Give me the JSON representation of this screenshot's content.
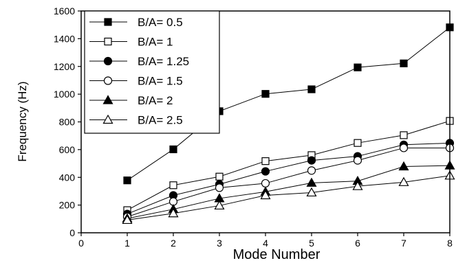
{
  "chart_data": {
    "type": "line",
    "title": "",
    "xlabel": "Mode Number",
    "ylabel": "Frequency (Hz)",
    "xlim": [
      0,
      8
    ],
    "ylim": [
      0,
      1600
    ],
    "x_ticks": [
      0,
      1,
      2,
      3,
      4,
      5,
      6,
      7,
      8
    ],
    "y_ticks": [
      0,
      200,
      400,
      600,
      800,
      1000,
      1200,
      1400,
      1600
    ],
    "grid": false,
    "legend_position": "top-left",
    "x": [
      1,
      2,
      3,
      4,
      5,
      6,
      7,
      8
    ],
    "series": [
      {
        "name": "B/A= 0.5",
        "marker": "square",
        "filled": true,
        "values": [
          378,
          602,
          877,
          1002,
          1035,
          1193,
          1222,
          1482
        ]
      },
      {
        "name": "B/A= 1",
        "marker": "square",
        "filled": false,
        "values": [
          163,
          343,
          405,
          517,
          560,
          648,
          704,
          807
        ]
      },
      {
        "name": "B/A= 1.25",
        "marker": "circle",
        "filled": true,
        "values": [
          136,
          270,
          350,
          443,
          522,
          552,
          635,
          647
        ]
      },
      {
        "name": "B/A= 1.5",
        "marker": "circle",
        "filled": false,
        "values": [
          115,
          225,
          325,
          357,
          449,
          522,
          612,
          612
        ]
      },
      {
        "name": "B/A= 2",
        "marker": "triangle",
        "filled": true,
        "values": [
          103,
          170,
          248,
          296,
          360,
          373,
          478,
          485
        ]
      },
      {
        "name": "B/A= 2.5",
        "marker": "triangle",
        "filled": false,
        "values": [
          92,
          140,
          196,
          270,
          290,
          336,
          365,
          412
        ]
      }
    ]
  }
}
